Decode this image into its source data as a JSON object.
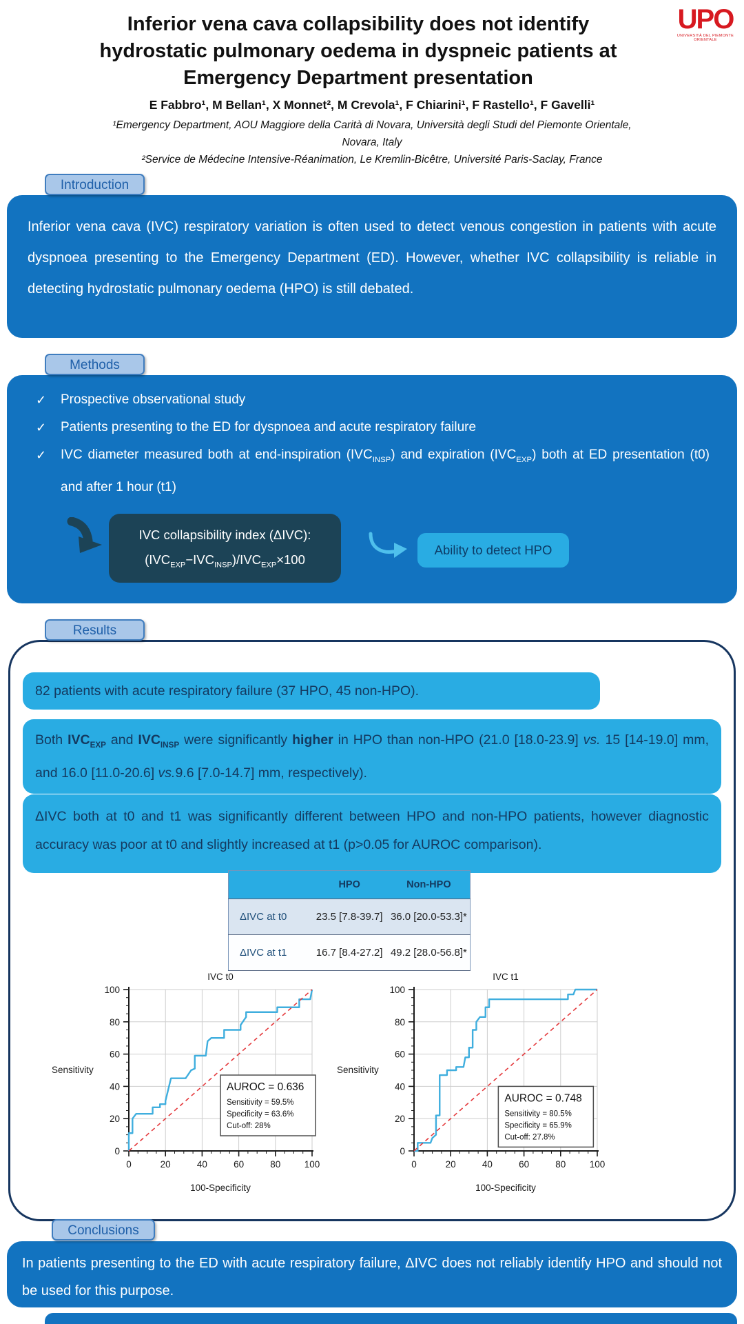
{
  "poster": {
    "title_lines": [
      "Inferior vena cava collapsibility does not identify",
      "hydrostatic pulmonary oedema in dyspneic patients at",
      "Emergency Department presentation"
    ],
    "authors": "E Fabbro¹, M Bellan¹, X Monnet², M Crevola¹, F Chiarini¹, F Rastello¹, F Gavelli¹",
    "affiliation1": "¹Emergency Department, AOU Maggiore della Carità di Novara, Università degli Studi del Piemonte Orientale, Novara, Italy",
    "affiliation2": "²Service de Médecine Intensive-Réanimation, Le Kremlin-Bicêtre, Université Paris-Saclay, France",
    "logo": {
      "text": "UPO",
      "caption": "UNIVERSITÀ DEL PIEMONTE ORIENTALE"
    }
  },
  "sections": {
    "introduction": {
      "tab": "Introduction",
      "text": "Inferior vena cava (IVC) respiratory variation is often used to detect venous congestion in patients with acute dyspnoea presenting to the Emergency Department (ED). However, whether IVC collapsibility is reliable in detecting hydrostatic pulmonary oedema (HPO) is still debated."
    },
    "methods": {
      "tab": "Methods",
      "check_icon": "✓",
      "bullet1": "Prospective observational study",
      "bullet2": "Patients presenting to the ED for dyspnoea and acute respiratory failure",
      "bullet3_segments": [
        {
          "t": "IVC diameter measured both at end-inspiration (IVC"
        },
        {
          "t": "INSP",
          "sub": true
        },
        {
          "t": ") and expiration (IVC"
        },
        {
          "t": "EXP",
          "sub": true
        },
        {
          "t": ") both at ED presentation (t0) and after 1 hour (t1)"
        }
      ],
      "formula_title": "IVC collapsibility index (ΔIVC):",
      "formula_segments": [
        {
          "t": "(IVC"
        },
        {
          "t": "EXP",
          "sub": true
        },
        {
          "t": "−IVC"
        },
        {
          "t": "INSP",
          "sub": true
        },
        {
          "t": ")/IVC"
        },
        {
          "t": "EXP",
          "sub": true
        },
        {
          "t": "×100"
        }
      ],
      "ability_label": "Ability to detect HPO"
    },
    "results": {
      "tab": "Results",
      "finding1": "82 patients with acute respiratory failure (37 HPO, 45 non-HPO).",
      "finding2_segments": [
        {
          "t": "Both "
        },
        {
          "t": "IVC",
          "b": true
        },
        {
          "t": "EXP",
          "sub": true,
          "b": true
        },
        {
          "t": " and "
        },
        {
          "t": "IVC",
          "b": true
        },
        {
          "t": "INSP",
          "sub": true,
          "b": true
        },
        {
          "t": " were significantly "
        },
        {
          "t": "higher",
          "b": true
        },
        {
          "t": " in HPO than non-HPO (21.0 [18.0-23.9] "
        },
        {
          "t": "vs.",
          "i": true
        },
        {
          "t": " 15 [14-19.0] mm, and 16.0 [11.0-20.6] "
        },
        {
          "t": "vs.",
          "i": true
        },
        {
          "t": "9.6 [7.0-14.7] mm, respectively)."
        }
      ],
      "finding3": "ΔIVC both at t0 and t1 was significantly different between HPO and non-HPO patients, however diagnostic accuracy was poor at t0 and slightly increased at t1 (p>0.05 for AUROC comparison).",
      "table": {
        "headers": [
          "",
          "HPO",
          "Non-HPO"
        ],
        "rows": [
          [
            "ΔIVC at t0",
            "23.5 [7.8-39.7]",
            "36.0 [20.0-53.3]*"
          ],
          [
            "ΔIVC at t1",
            "16.7 [8.4-27.2]",
            "49.2 [28.0-56.8]*"
          ]
        ]
      }
    },
    "conclusions": {
      "tab": "Conclusions",
      "text": "In patients presenting to the ED with acute respiratory failure, ΔIVC does not reliably identify HPO and should not be used for this purpose."
    }
  },
  "colors": {
    "primary_blue": "#1273C0",
    "cyan_accent": "#29ACE3",
    "navy_text": "#14395F",
    "formula_dark": "#1C4356",
    "tab_fill": "#A9C7E9",
    "logo_red": "#D71920",
    "roc_curve_blue": "#3FAEDE",
    "diagonal_red": "#E4393C"
  },
  "chart_data": [
    {
      "type": "line",
      "title": "IVC t0",
      "xlabel": "100-Specificity",
      "ylabel": "Sensitivity",
      "xlim": [
        0,
        100
      ],
      "ylim": [
        0,
        100
      ],
      "xticks": [
        0,
        20,
        40,
        60,
        80,
        100
      ],
      "yticks": [
        0,
        20,
        40,
        60,
        80,
        100
      ],
      "grid": true,
      "series": [
        {
          "name": "ROC curve",
          "color": "#3FAEDE",
          "points": [
            [
              0,
              0
            ],
            [
              0,
              11
            ],
            [
              2,
              11
            ],
            [
              2,
              20
            ],
            [
              4,
              23
            ],
            [
              13,
              23
            ],
            [
              13,
              27
            ],
            [
              17,
              27
            ],
            [
              17,
              29
            ],
            [
              20,
              29
            ],
            [
              20,
              31
            ],
            [
              23,
              45
            ],
            [
              31,
              45
            ],
            [
              34,
              50
            ],
            [
              36,
              51
            ],
            [
              36,
              59
            ],
            [
              42,
              59
            ],
            [
              43,
              68
            ],
            [
              45,
              70
            ],
            [
              52,
              70
            ],
            [
              52,
              75
            ],
            [
              61,
              75
            ],
            [
              61,
              78
            ],
            [
              64,
              83
            ],
            [
              64,
              86
            ],
            [
              67,
              86
            ],
            [
              81,
              86
            ],
            [
              81,
              89
            ],
            [
              93,
              89
            ],
            [
              93,
              94
            ],
            [
              99,
              94
            ],
            [
              100,
              100
            ]
          ]
        },
        {
          "name": "reference diagonal",
          "color": "#E4393C",
          "dashed": true,
          "points": [
            [
              0,
              0
            ],
            [
              100,
              100
            ]
          ]
        }
      ],
      "annotation": {
        "lines": [
          "AUROC = 0.636",
          "Sensitivity = 59.5%",
          "Specificity = 63.6%",
          "Cut-off: 28%"
        ],
        "x": 50,
        "y": 47
      }
    },
    {
      "type": "line",
      "title": "IVC t1",
      "xlabel": "100-Specificity",
      "ylabel": "Sensitivity",
      "xlim": [
        0,
        100
      ],
      "ylim": [
        0,
        100
      ],
      "xticks": [
        0,
        20,
        40,
        60,
        80,
        100
      ],
      "yticks": [
        0,
        20,
        40,
        60,
        80,
        100
      ],
      "grid": true,
      "series": [
        {
          "name": "ROC curve",
          "color": "#3FAEDE",
          "points": [
            [
              0,
              0
            ],
            [
              2,
              0
            ],
            [
              2,
              5
            ],
            [
              9,
              5
            ],
            [
              10,
              8
            ],
            [
              12,
              10
            ],
            [
              12,
              22
            ],
            [
              14,
              22
            ],
            [
              14,
              47
            ],
            [
              18,
              47
            ],
            [
              18,
              50
            ],
            [
              23,
              50
            ],
            [
              23,
              52
            ],
            [
              27,
              52
            ],
            [
              28,
              58
            ],
            [
              30,
              58
            ],
            [
              30,
              64
            ],
            [
              32,
              64
            ],
            [
              32,
              75
            ],
            [
              34,
              75
            ],
            [
              34,
              80
            ],
            [
              36,
              83
            ],
            [
              39,
              83
            ],
            [
              39,
              89
            ],
            [
              41,
              89
            ],
            [
              41,
              94
            ],
            [
              44,
              94
            ],
            [
              84,
              94
            ],
            [
              84,
              97
            ],
            [
              87,
              97
            ],
            [
              88,
              100
            ],
            [
              100,
              100
            ]
          ]
        },
        {
          "name": "reference diagonal",
          "color": "#E4393C",
          "dashed": true,
          "points": [
            [
              0,
              0
            ],
            [
              100,
              100
            ]
          ]
        }
      ],
      "annotation": {
        "lines": [
          "AUROC = 0.748",
          "Sensitivity = 80.5%",
          "Specificity = 65.9%",
          "Cut-off: 27.8%"
        ],
        "x": 46,
        "y": 40
      }
    }
  ]
}
